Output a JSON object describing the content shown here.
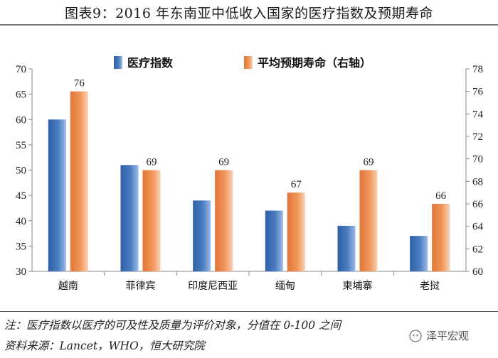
{
  "title": "图表9：2016 年东南亚中低收入国家的医疗指数及预期寿命",
  "note": "注：医疗指数以医疗的可及性及质量为评价对象，分值在 0-100 之间",
  "source": "资料来源：Lancet，WHO，恒大研究院",
  "watermark": "泽平宏观",
  "colors": {
    "blue_bar": "#4a7cc0",
    "orange_bar": "#f0955a",
    "axis": "#888888"
  },
  "chart_data": {
    "type": "bar",
    "title": "",
    "categories": [
      "越南",
      "菲律宾",
      "印度尼西亚",
      "缅甸",
      "柬埔寨",
      "老挝"
    ],
    "series": [
      {
        "name": "医疗指数",
        "axis": "left",
        "values": [
          60,
          51,
          44,
          42,
          39,
          37
        ]
      },
      {
        "name": "平均预期寿命（右轴）",
        "axis": "right",
        "values": [
          76,
          69,
          69,
          67,
          69,
          66
        ],
        "data_labels": [
          "76",
          "69",
          "69",
          "67",
          "69",
          "66"
        ]
      }
    ],
    "y_left": {
      "min": 30,
      "max": 70,
      "ticks": [
        "30",
        "35",
        "40",
        "45",
        "50",
        "55",
        "60",
        "65",
        "70"
      ]
    },
    "y_right": {
      "min": 60,
      "max": 78,
      "ticks": [
        "60",
        "62",
        "64",
        "66",
        "68",
        "70",
        "72",
        "74",
        "76",
        "78"
      ]
    },
    "grid": false,
    "legend_position": "top"
  }
}
